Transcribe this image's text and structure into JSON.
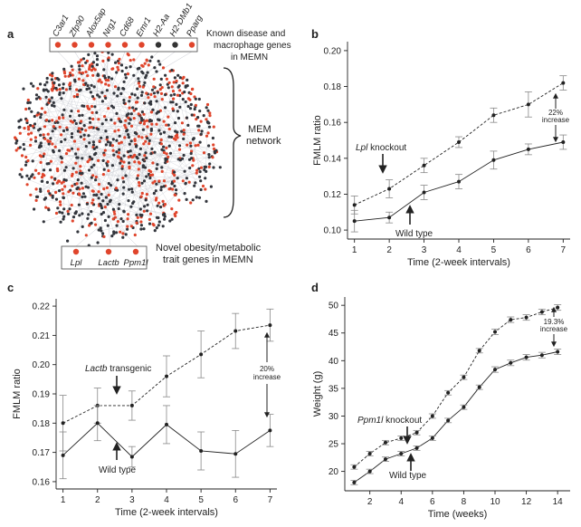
{
  "panel_a": {
    "letter": "a",
    "known_genes": [
      "C3ar1",
      "Zfp90",
      "Alox5ap",
      "Nrg1",
      "Cd68",
      "Emr1",
      "H2-Aa",
      "H2-DMb1",
      "Pparg"
    ],
    "known_gene_colors": [
      "#e0452c",
      "#e0452c",
      "#e0452c",
      "#e0452c",
      "#e0452c",
      "#e0452c",
      "#333333",
      "#333333",
      "#e0452c"
    ],
    "known_label_line1": "Known disease and",
    "known_label_line2": "macrophage genes",
    "known_label_line3": "in MEMN",
    "network_label_line1": "MEM",
    "network_label_line2": "network",
    "novel_genes": [
      "Lpl",
      "Lactb",
      "Ppm1l"
    ],
    "novel_label_line1": "Novel obesity/metabolic",
    "novel_label_line2": "trait genes in MEMN",
    "colors": {
      "red": "#e0452c",
      "dark": "#33363d",
      "edge": "#c9cbd3"
    }
  },
  "chart_data": [
    {
      "panel": "b",
      "type": "line",
      "xlabel": "Time (2-week intervals)",
      "ylabel": "FMLM ratio",
      "xlim": [
        0.8,
        7.2
      ],
      "ylim": [
        0.095,
        0.205
      ],
      "xticks": [
        1,
        2,
        3,
        4,
        5,
        6,
        7
      ],
      "yticks": [
        0.1,
        0.12,
        0.14,
        0.16,
        0.18,
        0.2
      ],
      "ytick_labels": [
        "0.10",
        "0.12",
        "0.14",
        "0.16",
        "0.18",
        "0.20"
      ],
      "series": [
        {
          "name": "Lpl knockout",
          "style": "dashed",
          "x": [
            1,
            2,
            3,
            4,
            5,
            6,
            7
          ],
          "y": [
            0.114,
            0.123,
            0.136,
            0.149,
            0.164,
            0.17,
            0.182
          ],
          "err": [
            0.005,
            0.005,
            0.004,
            0.003,
            0.004,
            0.007,
            0.004
          ]
        },
        {
          "name": "Wild type",
          "style": "solid",
          "x": [
            1,
            2,
            3,
            4,
            5,
            6,
            7
          ],
          "y": [
            0.105,
            0.107,
            0.121,
            0.127,
            0.139,
            0.145,
            0.149
          ],
          "err": [
            0.006,
            0.003,
            0.004,
            0.004,
            0.005,
            0.003,
            0.004
          ]
        }
      ],
      "annotations": {
        "knockout_label": "Lpl",
        "knockout_suffix": " knockout",
        "wildtype_label": "Wild type",
        "increase_line1": "22%",
        "increase_line2": "increase"
      }
    },
    {
      "panel": "c",
      "type": "line",
      "xlabel": "Time (2-week intervals)",
      "ylabel": "FMLM ratio",
      "xlim": [
        0.8,
        7.2
      ],
      "ylim": [
        0.1575,
        0.2225
      ],
      "xticks": [
        1,
        2,
        3,
        4,
        5,
        6,
        7
      ],
      "yticks": [
        0.16,
        0.17,
        0.18,
        0.19,
        0.2,
        0.21,
        0.22
      ],
      "ytick_labels": [
        "0.16",
        "0.17",
        "0.18",
        "0.19",
        "0.20",
        "0.21",
        "0.22"
      ],
      "series": [
        {
          "name": "Lactb transgenic",
          "style": "dashed",
          "x": [
            1,
            2,
            3,
            4,
            5,
            6,
            7
          ],
          "y": [
            0.18,
            0.186,
            0.186,
            0.196,
            0.2035,
            0.2115,
            0.2135
          ],
          "err": [
            0.0095,
            0.006,
            0.005,
            0.007,
            0.008,
            0.006,
            0.0055
          ]
        },
        {
          "name": "Wild type",
          "style": "solid",
          "x": [
            1,
            2,
            3,
            4,
            5,
            6,
            7
          ],
          "y": [
            0.169,
            0.18,
            0.1685,
            0.1795,
            0.1705,
            0.1695,
            0.1775
          ],
          "err": [
            0.008,
            0.006,
            0.0035,
            0.0065,
            0.0065,
            0.008,
            0.0055
          ]
        }
      ],
      "annotations": {
        "transgenic_label": "Lactb",
        "transgenic_suffix": " transgenic",
        "wildtype_label": "Wild type",
        "increase_line1": "20%",
        "increase_line2": "increase"
      }
    },
    {
      "panel": "d",
      "type": "line",
      "xlabel": "Time (weeks)",
      "ylabel": "Weight (g)",
      "xlim": [
        0.4,
        14.8
      ],
      "ylim": [
        16.5,
        51.5
      ],
      "xticks": [
        2,
        4,
        6,
        8,
        10,
        12,
        14
      ],
      "yticks": [
        20,
        25,
        30,
        35,
        40,
        45,
        50
      ],
      "ytick_labels": [
        "20",
        "25",
        "30",
        "35",
        "40",
        "45",
        "50"
      ],
      "series": [
        {
          "name": "Ppm1l knockout",
          "style": "dashed",
          "x": [
            1,
            2,
            3,
            4,
            5,
            6,
            7,
            8,
            9,
            10,
            11,
            12,
            13,
            14
          ],
          "y": [
            20.8,
            23.2,
            25.2,
            26.0,
            27.0,
            30.0,
            34.2,
            37.0,
            41.8,
            45.2,
            47.4,
            47.8,
            48.8,
            49.6
          ],
          "err": [
            0.4,
            0.4,
            0.4,
            0.4,
            0.4,
            0.4,
            0.4,
            0.4,
            0.4,
            0.5,
            0.5,
            0.5,
            0.5,
            0.5
          ]
        },
        {
          "name": "Wild type",
          "style": "solid",
          "x": [
            1,
            2,
            3,
            4,
            5,
            6,
            7,
            8,
            9,
            10,
            11,
            12,
            13,
            14
          ],
          "y": [
            18.0,
            20.0,
            22.2,
            23.2,
            24.2,
            26.0,
            29.2,
            31.6,
            35.2,
            38.4,
            39.6,
            40.6,
            41.0,
            41.6
          ],
          "err": [
            0.4,
            0.4,
            0.4,
            0.4,
            0.4,
            0.4,
            0.4,
            0.4,
            0.4,
            0.5,
            0.5,
            0.5,
            0.5,
            0.5
          ]
        }
      ],
      "annotations": {
        "knockout_label": "Ppm1l",
        "knockout_suffix": " knockout",
        "wildtype_label": "Wild type",
        "increase_line1": "19.3%",
        "increase_line2": "increase"
      }
    }
  ]
}
